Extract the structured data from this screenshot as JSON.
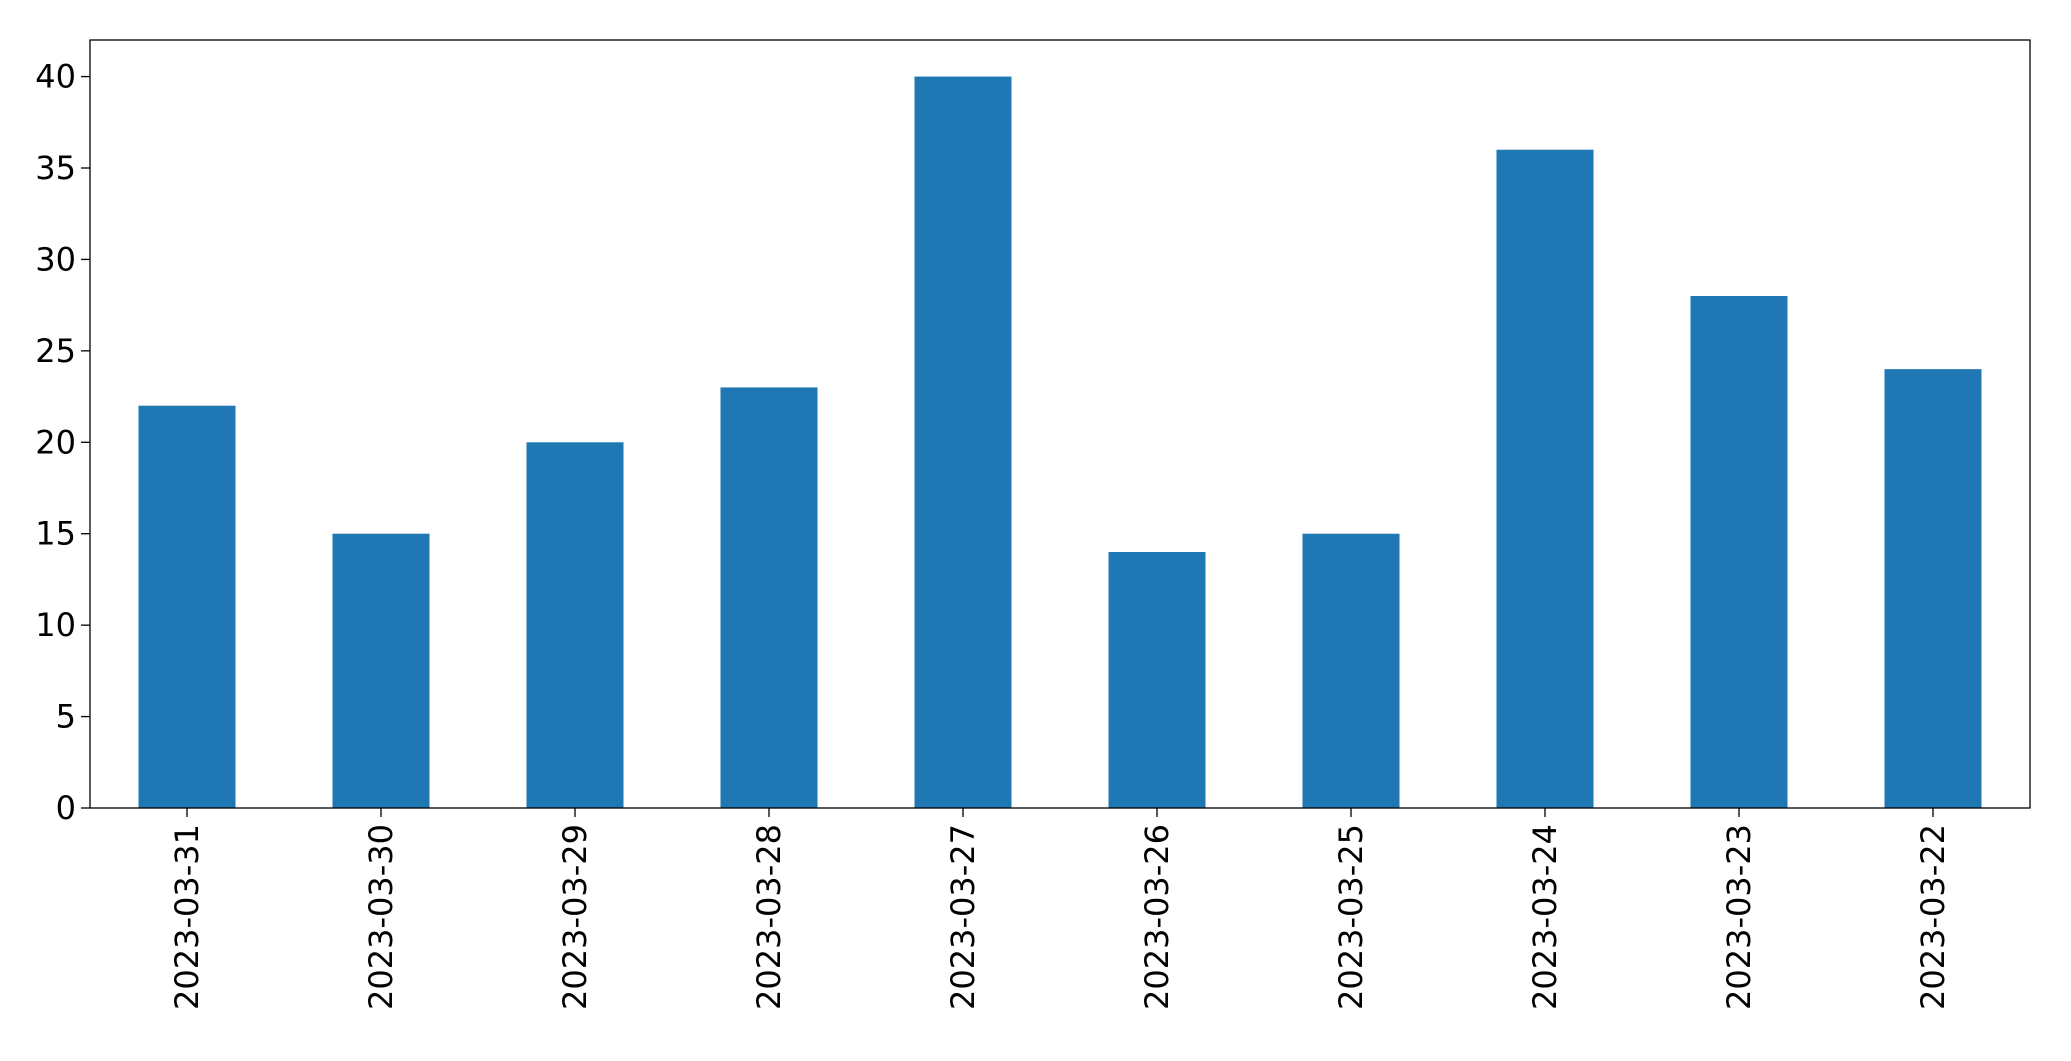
{
  "chart_data": {
    "type": "bar",
    "categories": [
      "2023-03-31",
      "2023-03-30",
      "2023-03-29",
      "2023-03-28",
      "2023-03-27",
      "2023-03-26",
      "2023-03-25",
      "2023-03-24",
      "2023-03-23",
      "2023-03-22"
    ],
    "values": [
      22,
      15,
      20,
      23,
      40,
      14,
      15,
      36,
      28,
      24
    ],
    "color": "#1f77b4",
    "ylim": [
      0,
      42
    ],
    "yticks": [
      0,
      5,
      10,
      15,
      20,
      25,
      30,
      35,
      40
    ],
    "grid": false
  }
}
